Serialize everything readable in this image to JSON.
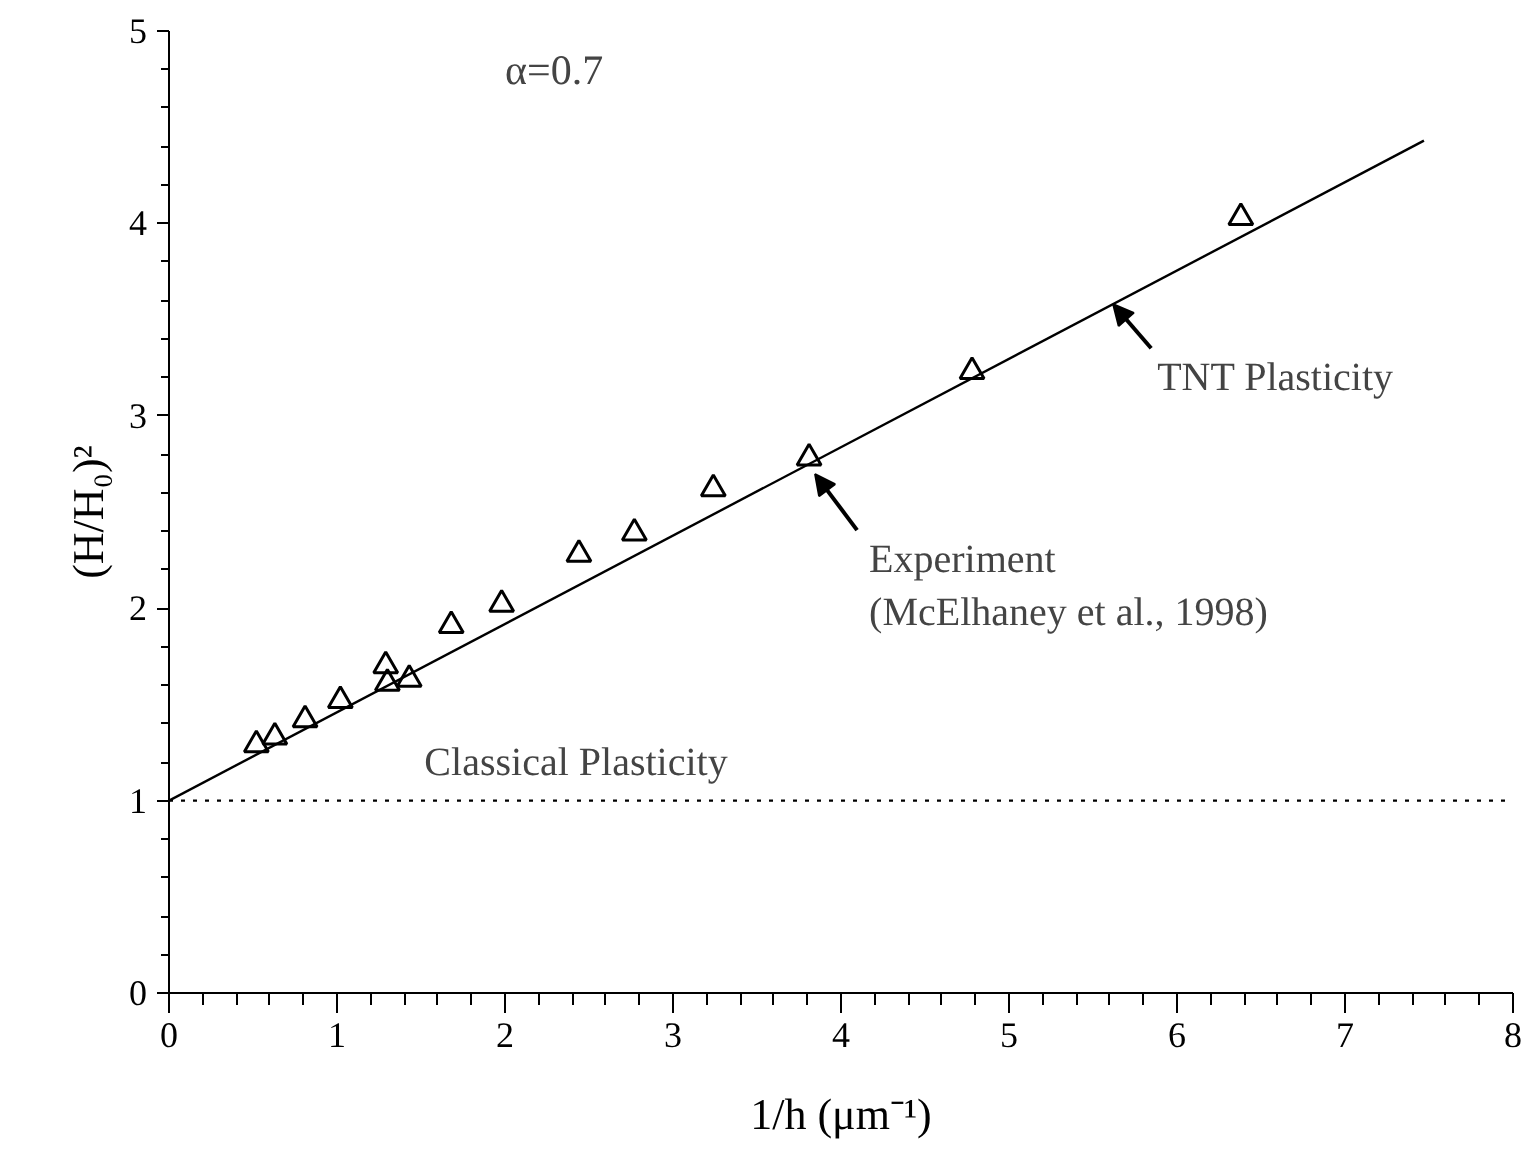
{
  "chart_data": {
    "type": "scatter",
    "xlabel": "1/h (μm⁻¹)",
    "ylabel": "(H/H₀)²",
    "xlim": [
      0,
      8
    ],
    "ylim": [
      0,
      5
    ],
    "xticks": [
      0,
      1,
      2,
      3,
      4,
      5,
      6,
      7,
      8
    ],
    "yticks": [
      0,
      1,
      2,
      3,
      4,
      5
    ],
    "grid": false,
    "marker": "triangle",
    "series": [
      {
        "color": "#000000",
        "x": [
          0.52,
          0.63,
          0.81,
          1.02,
          1.29,
          1.3,
          1.43,
          1.68,
          1.98,
          2.44,
          2.77,
          3.24,
          3.81,
          4.78,
          6.38
        ],
        "values": [
          1.29,
          1.33,
          1.42,
          1.52,
          1.7,
          1.61,
          1.63,
          1.91,
          2.02,
          2.28,
          2.39,
          2.62,
          2.78,
          3.23,
          4.03
        ]
      },
      {
        "type": "line",
        "color": "#000000",
        "line_style": "solid",
        "marker": "none",
        "x": [
          0,
          7.47
        ],
        "values": [
          1,
          4.43
        ]
      }
    ],
    "ref_lines": [
      {
        "axis": "y",
        "value": 1,
        "label": "Classical Plasticity",
        "color": "#000000",
        "line_style": "dotted"
      }
    ],
    "annotations": [
      "α=0.7",
      {
        "text": "Experiment\n(McElhaney et al., 1998)",
        "x": 3.81,
        "y": 2.78
      },
      {
        "text": "TNT Plasticity",
        "x": 5.62,
        "y": 3.58
      }
    ]
  }
}
